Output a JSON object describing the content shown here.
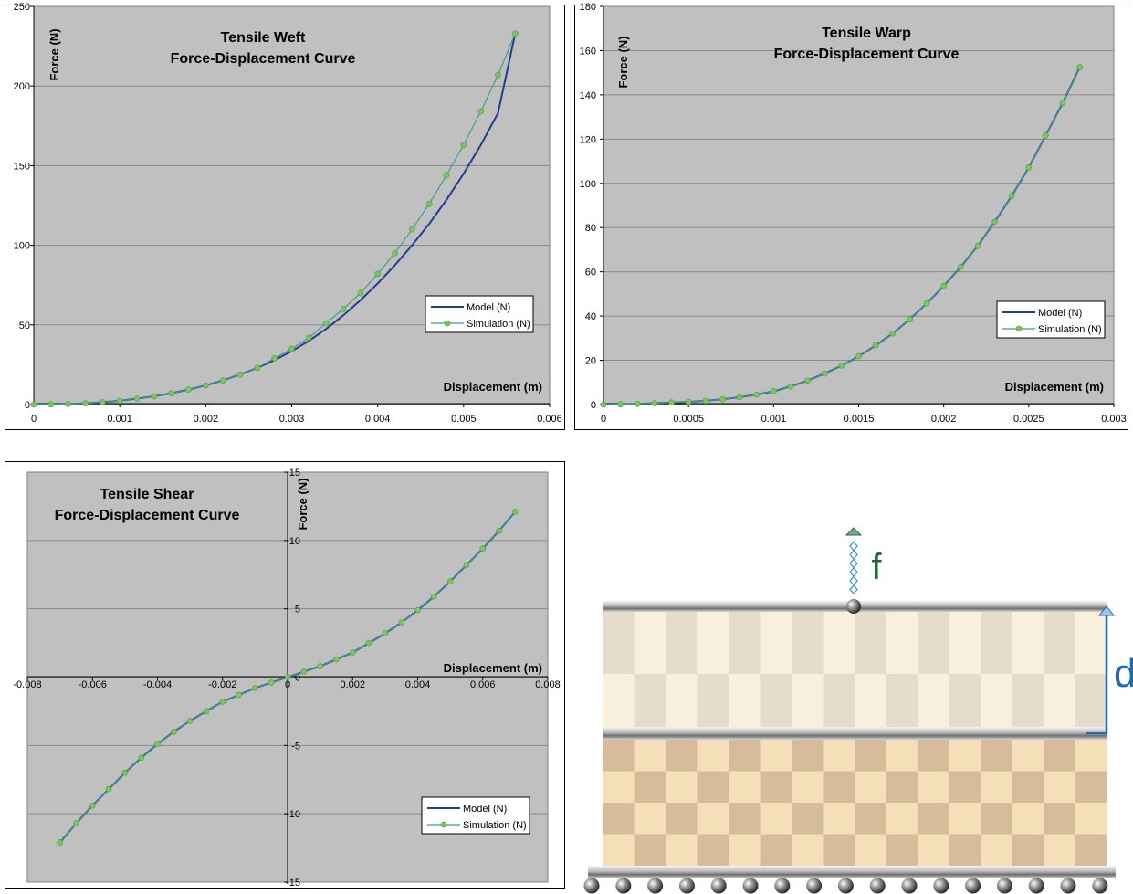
{
  "charts": [
    {
      "id": "weft",
      "type": "line",
      "title_line1": "Tensile Weft",
      "title_line2": "Force-Displacement Curve",
      "xlabel": "Displacement (m)",
      "ylabel": "Force (N)",
      "xlim": [
        0,
        0.006
      ],
      "ylim": [
        0,
        250
      ],
      "x_ticks": [
        0,
        0.001,
        0.002,
        0.003,
        0.004,
        0.005,
        0.006
      ],
      "x_tick_labels": [
        "0",
        "0.001",
        "0.002",
        "0.003",
        "0.004",
        "0.005",
        "0.006"
      ],
      "y_ticks": [
        0,
        50,
        100,
        150,
        200,
        250
      ],
      "y_tick_labels": [
        "0",
        "50",
        "100",
        "150",
        "200",
        "250"
      ],
      "grid": true,
      "legend_position": "right",
      "legend": [
        "Model (N)",
        "Simulation (N)"
      ]
    },
    {
      "id": "warp",
      "type": "line",
      "title_line1": "Tensile Warp",
      "title_line2": "Force-Displacement Curve",
      "xlabel": "Displacement (m)",
      "ylabel": "Force (N)",
      "xlim": [
        0,
        0.003
      ],
      "ylim": [
        0,
        180
      ],
      "x_ticks": [
        0,
        0.0005,
        0.001,
        0.0015,
        0.002,
        0.0025,
        0.003
      ],
      "x_tick_labels": [
        "0",
        "0.0005",
        "0.001",
        "0.0015",
        "0.002",
        "0.0025",
        "0.003"
      ],
      "y_ticks": [
        0,
        20,
        40,
        60,
        80,
        100,
        120,
        140,
        160,
        180
      ],
      "y_tick_labels": [
        "0",
        "20",
        "40",
        "60",
        "80",
        "100",
        "120",
        "140",
        "160",
        "180"
      ],
      "grid": true,
      "legend_position": "right",
      "legend": [
        "Model (N)",
        "Simulation (N)"
      ]
    },
    {
      "id": "shear",
      "type": "line",
      "title_line1": "Tensile Shear",
      "title_line2": "Force-Displacement Curve",
      "xlabel": "Displacement (m)",
      "ylabel": "Force (N)",
      "xlim": [
        -0.008,
        0.008
      ],
      "ylim": [
        -15,
        15
      ],
      "x_ticks": [
        -0.008,
        -0.006,
        -0.004,
        -0.002,
        0,
        0.002,
        0.004,
        0.006,
        0.008
      ],
      "x_tick_labels": [
        "-0.008",
        "-0.006",
        "-0.004",
        "-0.002",
        "0",
        "0.002",
        "0.004",
        "0.006",
        "0.008"
      ],
      "y_ticks": [
        -15,
        -10,
        -5,
        0,
        5,
        10,
        15
      ],
      "y_tick_labels": [
        "-15",
        "-10",
        "-5",
        "0",
        "5",
        "10",
        "15"
      ],
      "grid": true,
      "legend_position": "bottom-right",
      "legend": [
        "Model (N)",
        "Simulation (N)"
      ]
    }
  ],
  "chart_data": [
    {
      "type": "line",
      "title": "Tensile Weft Force-Displacement Curve",
      "xlabel": "Displacement (m)",
      "ylabel": "Force (N)",
      "xlim": [
        0,
        0.006
      ],
      "ylim": [
        0,
        250
      ],
      "series": [
        {
          "name": "Model (N)",
          "x": [
            0,
            0.0002,
            0.0004,
            0.0006,
            0.0008,
            0.001,
            0.0012,
            0.0014,
            0.0016,
            0.0018,
            0.002,
            0.0022,
            0.0024,
            0.0026,
            0.0028,
            0.003,
            0.0032,
            0.0034,
            0.0036,
            0.0038,
            0.004,
            0.0042,
            0.0044,
            0.0046,
            0.0048,
            0.005,
            0.0052,
            0.0054,
            0.0056
          ],
          "y": [
            0,
            0.1,
            0.3,
            0.8,
            1.5,
            2.4,
            3.7,
            5.2,
            7.1,
            9.4,
            12,
            15.2,
            18.8,
            23,
            27.9,
            33.5,
            40,
            47.5,
            56,
            65.5,
            76,
            87.5,
            100,
            113.5,
            128.5,
            145,
            163,
            183,
            233
          ]
        },
        {
          "name": "Simulation (N)",
          "x": [
            0,
            0.0002,
            0.0004,
            0.0006,
            0.0008,
            0.001,
            0.0012,
            0.0014,
            0.0016,
            0.0018,
            0.002,
            0.0022,
            0.0024,
            0.0026,
            0.0028,
            0.003,
            0.0032,
            0.0034,
            0.0036,
            0.0038,
            0.004,
            0.0042,
            0.0044,
            0.0046,
            0.0048,
            0.005,
            0.0052,
            0.0054,
            0.0056
          ],
          "y": [
            0,
            0.1,
            0.3,
            0.8,
            1.5,
            2.4,
            3.7,
            5.2,
            7.1,
            9.4,
            12,
            15.2,
            18.8,
            23,
            29,
            35,
            42,
            51,
            60,
            70,
            82,
            95,
            110,
            126,
            144,
            163,
            184,
            207,
            233
          ]
        }
      ]
    },
    {
      "type": "line",
      "title": "Tensile Warp Force-Displacement Curve",
      "xlabel": "Displacement (m)",
      "ylabel": "Force (N)",
      "xlim": [
        0,
        0.003
      ],
      "ylim": [
        0,
        180
      ],
      "series": [
        {
          "name": "Model (N)",
          "x": [
            0,
            0.0001,
            0.0002,
            0.0003,
            0.0004,
            0.0005,
            0.0006,
            0.0007,
            0.0008,
            0.0009,
            0.001,
            0.0011,
            0.0012,
            0.0013,
            0.0014,
            0.0015,
            0.0016,
            0.0017,
            0.0018,
            0.0019,
            0.002,
            0.0021,
            0.0022,
            0.0023,
            0.0024,
            0.0025,
            0.0026,
            0.0027,
            0.0028
          ],
          "y": [
            0,
            0.1,
            0.3,
            0.6,
            0.9,
            1.2,
            1.7,
            2.4,
            3.3,
            4.5,
            6,
            8.2,
            10.8,
            14,
            17.6,
            21.8,
            26.7,
            32.1,
            38.5,
            45.7,
            53.6,
            62.2,
            71.7,
            82.6,
            94.3,
            107.2,
            121.7,
            136.4,
            152.5
          ]
        },
        {
          "name": "Simulation (N)",
          "x": [
            0,
            0.0001,
            0.0002,
            0.0003,
            0.0004,
            0.0005,
            0.0006,
            0.0007,
            0.0008,
            0.0009,
            0.001,
            0.0011,
            0.0012,
            0.0013,
            0.0014,
            0.0015,
            0.0016,
            0.0017,
            0.0018,
            0.0019,
            0.002,
            0.0021,
            0.0022,
            0.0023,
            0.0024,
            0.0025,
            0.0026,
            0.0027,
            0.0028
          ],
          "y": [
            0,
            0.1,
            0.3,
            0.6,
            0.9,
            1.2,
            1.7,
            2.4,
            3.3,
            4.5,
            6,
            8.2,
            10.8,
            14,
            17.6,
            21.8,
            26.7,
            32.1,
            38.5,
            45.7,
            53.6,
            62.2,
            71.7,
            82.6,
            94.3,
            107.2,
            121.7,
            136.4,
            152.5
          ]
        }
      ]
    },
    {
      "type": "line",
      "title": "Tensile Shear Force-Displacement Curve",
      "xlabel": "Displacement (m)",
      "ylabel": "Force (N)",
      "xlim": [
        -0.008,
        0.008
      ],
      "ylim": [
        -15,
        15
      ],
      "series": [
        {
          "name": "Model (N)",
          "x": [
            -0.007,
            -0.0065,
            -0.006,
            -0.0055,
            -0.005,
            -0.0045,
            -0.004,
            -0.0035,
            -0.003,
            -0.0025,
            -0.002,
            -0.0015,
            -0.001,
            -0.0005,
            0,
            0.0005,
            0.001,
            0.0015,
            0.002,
            0.0025,
            0.003,
            0.0035,
            0.004,
            0.0045,
            0.005,
            0.0055,
            0.006,
            0.0065,
            0.007
          ],
          "y": [
            -12.1,
            -10.7,
            -9.4,
            -8.2,
            -7,
            -5.9,
            -4.9,
            -4,
            -3.2,
            -2.5,
            -1.8,
            -1.3,
            -0.8,
            -0.4,
            0,
            0.4,
            0.8,
            1.3,
            1.8,
            2.5,
            3.2,
            4,
            4.9,
            5.9,
            7,
            8.2,
            9.4,
            10.7,
            12.1
          ]
        },
        {
          "name": "Simulation (N)",
          "x": [
            -0.007,
            -0.0065,
            -0.006,
            -0.0055,
            -0.005,
            -0.0045,
            -0.004,
            -0.0035,
            -0.003,
            -0.0025,
            -0.002,
            -0.0015,
            -0.001,
            -0.0005,
            0,
            0.0005,
            0.001,
            0.0015,
            0.002,
            0.0025,
            0.003,
            0.0035,
            0.004,
            0.0045,
            0.005,
            0.0055,
            0.006,
            0.0065,
            0.007
          ],
          "y": [
            -12.1,
            -10.7,
            -9.4,
            -8.2,
            -7,
            -5.9,
            -4.9,
            -4,
            -3.2,
            -2.5,
            -1.8,
            -1.3,
            -0.8,
            -0.4,
            0,
            0.4,
            0.8,
            1.3,
            1.8,
            2.5,
            3.2,
            4,
            4.9,
            5.9,
            7,
            8.2,
            9.4,
            10.7,
            12.1
          ]
        }
      ]
    }
  ],
  "colors": {
    "plot_bg": "#c0c0c0",
    "grid": "#8a8a8a",
    "model_line": "#1f3f8f",
    "sim_line": "#3f9f8f",
    "sim_marker": "#77c95a",
    "force_label": "#1a6b3a",
    "disp_arrow": "#1a6bb0",
    "light_check_a": "#f8f0dc",
    "light_check_b": "#e6dccb",
    "dark_check_a": "#f5dfb8",
    "dark_check_b": "#d6bc9a",
    "rod": "#9a9a9a"
  },
  "diagram": {
    "force_label": "f",
    "displacement_label": "d"
  }
}
